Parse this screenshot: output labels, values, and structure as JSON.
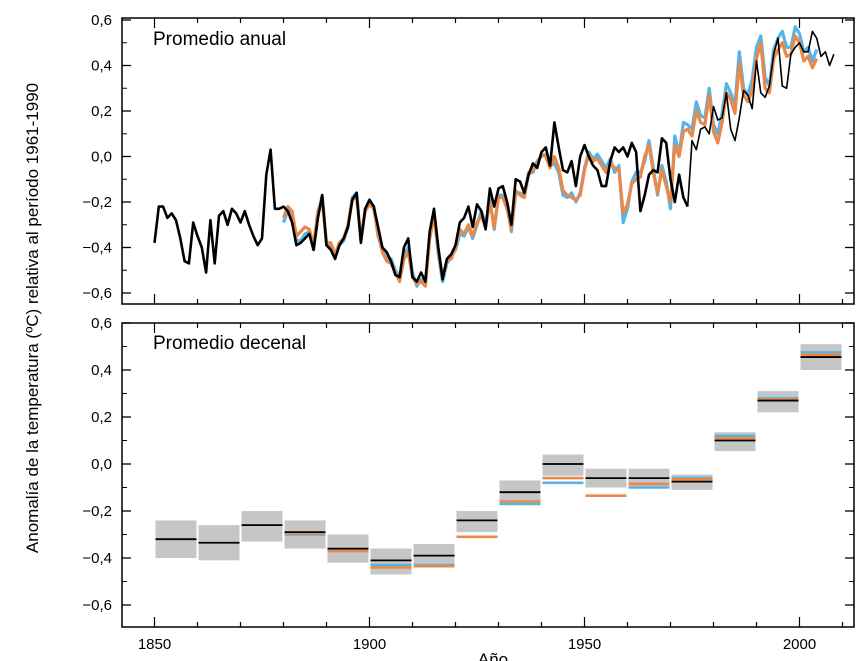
{
  "chart_data": {
    "ylabel": "Anomalía de la temperatura (ºC) relativa al período 1961-1990",
    "xlabel": "Año",
    "x_ticks": [
      "1850",
      "1900",
      "1950",
      "2000"
    ],
    "y_ticks": [
      "−0,6",
      "−0,4",
      "−0,2",
      "0,0",
      "0,2",
      "0,4",
      "0,6"
    ],
    "colors": {
      "black": "#000000",
      "blue": "#56b4e9",
      "orange": "#e8894a",
      "band": "#c6c6c6"
    },
    "panels": [
      {
        "type": "line",
        "title": "Promedio anual",
        "xlim": [
          1845,
          2012
        ],
        "ylim": [
          -0.65,
          0.62
        ],
        "series": [
          {
            "color": "black",
            "start_year": 1850,
            "values": [
              -0.38,
              -0.22,
              -0.22,
              -0.27,
              -0.25,
              -0.28,
              -0.36,
              -0.46,
              -0.47,
              -0.29,
              -0.35,
              -0.4,
              -0.51,
              -0.28,
              -0.47,
              -0.26,
              -0.24,
              -0.3,
              -0.23,
              -0.25,
              -0.29,
              -0.24,
              -0.3,
              -0.35,
              -0.39,
              -0.36,
              -0.08,
              0.03,
              -0.23,
              -0.23,
              -0.22,
              -0.24,
              -0.29,
              -0.39,
              -0.38,
              -0.36,
              -0.34,
              -0.41,
              -0.27,
              -0.17,
              -0.39,
              -0.41,
              -0.45,
              -0.39,
              -0.36,
              -0.31,
              -0.19,
              -0.16,
              -0.38,
              -0.23,
              -0.19,
              -0.22,
              -0.31,
              -0.4,
              -0.42,
              -0.46,
              -0.52,
              -0.53,
              -0.4,
              -0.36,
              -0.53,
              -0.55,
              -0.51,
              -0.55,
              -0.33,
              -0.23,
              -0.4,
              -0.54,
              -0.45,
              -0.43,
              -0.39,
              -0.29,
              -0.27,
              -0.22,
              -0.31,
              -0.21,
              -0.24,
              -0.32,
              -0.14,
              -0.22,
              -0.14,
              -0.13,
              -0.2,
              -0.3,
              -0.1,
              -0.11,
              -0.16,
              -0.08,
              -0.03,
              -0.05,
              0.02,
              0.04,
              -0.04,
              0.15,
              0.04,
              -0.06,
              -0.07,
              -0.02,
              -0.13,
              0.0,
              0.05,
              0.0,
              -0.04,
              -0.06,
              -0.13,
              -0.13,
              -0.02,
              0.04,
              0.02,
              0.04,
              0.0,
              0.06,
              0.02,
              -0.24,
              -0.17,
              -0.08,
              -0.06,
              -0.07,
              0.08,
              0.06,
              -0.1,
              -0.2,
              -0.08,
              -0.18,
              -0.22,
              0.07,
              0.03,
              0.12,
              0.13,
              0.1,
              0.22,
              0.16,
              0.17,
              0.28,
              0.12,
              0.07,
              0.17,
              0.29,
              0.27,
              0.21,
              0.42,
              0.28,
              0.26,
              0.31,
              0.45,
              0.52,
              0.31,
              0.3,
              0.45,
              0.48,
              0.5,
              0.46,
              0.46,
              0.55,
              0.52,
              0.44,
              0.46,
              0.4,
              0.45
            ],
            "thin_from_index": 124
          },
          {
            "color": "blue",
            "start_year": 1880,
            "values": [
              -0.29,
              -0.24,
              -0.25,
              -0.37,
              -0.37,
              -0.34,
              -0.33,
              -0.41,
              -0.26,
              -0.17,
              -0.39,
              -0.39,
              -0.44,
              -0.39,
              -0.37,
              -0.31,
              -0.18,
              -0.16,
              -0.37,
              -0.23,
              -0.2,
              -0.22,
              -0.35,
              -0.41,
              -0.45,
              -0.45,
              -0.5,
              -0.53,
              -0.43,
              -0.4,
              -0.51,
              -0.57,
              -0.54,
              -0.55,
              -0.35,
              -0.25,
              -0.43,
              -0.55,
              -0.47,
              -0.44,
              -0.41,
              -0.34,
              -0.35,
              -0.31,
              -0.36,
              -0.3,
              -0.24,
              -0.3,
              -0.19,
              -0.32,
              -0.17,
              -0.17,
              -0.21,
              -0.33,
              -0.16,
              -0.16,
              -0.17,
              -0.07,
              -0.07,
              -0.02,
              0.0,
              0.01,
              -0.04,
              -0.03,
              -0.07,
              -0.17,
              -0.18,
              -0.16,
              -0.2,
              -0.16,
              -0.05,
              0.02,
              -0.01,
              0.01,
              -0.02,
              -0.05,
              -0.01,
              -0.07,
              -0.04,
              -0.29,
              -0.23,
              -0.11,
              -0.07,
              -0.07,
              -0.02,
              0.07,
              -0.05,
              -0.17,
              -0.04,
              -0.11,
              -0.23,
              0.09,
              0.01,
              0.15,
              0.14,
              0.12,
              0.24,
              0.18,
              0.17,
              0.3,
              0.14,
              0.1,
              0.19,
              0.32,
              0.28,
              0.23,
              0.46,
              0.3,
              0.27,
              0.34,
              0.48,
              0.53,
              0.35,
              0.31,
              0.47,
              0.52,
              0.55,
              0.48,
              0.48,
              0.57,
              0.54,
              0.46,
              0.48,
              0.42,
              0.47
            ]
          },
          {
            "color": "orange",
            "start_year": 1880,
            "values": [
              -0.27,
              -0.22,
              -0.24,
              -0.35,
              -0.33,
              -0.31,
              -0.32,
              -0.39,
              -0.24,
              -0.19,
              -0.38,
              -0.38,
              -0.43,
              -0.38,
              -0.36,
              -0.3,
              -0.19,
              -0.18,
              -0.36,
              -0.24,
              -0.21,
              -0.23,
              -0.34,
              -0.42,
              -0.46,
              -0.47,
              -0.51,
              -0.55,
              -0.45,
              -0.42,
              -0.53,
              -0.56,
              -0.55,
              -0.57,
              -0.36,
              -0.26,
              -0.41,
              -0.53,
              -0.46,
              -0.45,
              -0.4,
              -0.32,
              -0.34,
              -0.3,
              -0.35,
              -0.29,
              -0.26,
              -0.31,
              -0.2,
              -0.31,
              -0.18,
              -0.18,
              -0.23,
              -0.32,
              -0.15,
              -0.17,
              -0.18,
              -0.08,
              -0.06,
              -0.03,
              0.01,
              0.0,
              -0.05,
              0.0,
              -0.05,
              -0.15,
              -0.17,
              -0.18,
              -0.19,
              -0.17,
              -0.06,
              0.01,
              -0.02,
              -0.01,
              -0.04,
              -0.07,
              -0.03,
              -0.05,
              -0.06,
              -0.25,
              -0.21,
              -0.12,
              -0.1,
              -0.09,
              0.0,
              0.05,
              -0.07,
              -0.16,
              -0.06,
              -0.13,
              -0.2,
              0.05,
              0.0,
              0.11,
              0.12,
              0.09,
              0.2,
              0.15,
              0.14,
              0.27,
              0.11,
              0.06,
              0.15,
              0.28,
              0.25,
              0.19,
              0.41,
              0.27,
              0.24,
              0.29,
              0.43,
              0.5,
              0.3,
              0.28,
              0.43,
              0.47,
              0.5,
              0.44,
              0.45,
              0.53,
              0.5,
              0.42,
              0.44,
              0.39,
              0.43
            ]
          }
        ]
      },
      {
        "type": "bar",
        "title": "Promedio decenal",
        "xlim": [
          1845,
          2012
        ],
        "ylim": [
          -0.65,
          0.62
        ],
        "decades": [
          {
            "x0": 1850,
            "x1": 1860,
            "black": -0.32,
            "lo": -0.4,
            "hi": -0.24
          },
          {
            "x0": 1860,
            "x1": 1870,
            "black": -0.335,
            "lo": -0.41,
            "hi": -0.26
          },
          {
            "x0": 1870,
            "x1": 1880,
            "black": -0.26,
            "lo": -0.33,
            "hi": -0.2
          },
          {
            "x0": 1880,
            "x1": 1890,
            "black": -0.29,
            "blue": -0.3,
            "orange": -0.295,
            "lo": -0.36,
            "hi": -0.24
          },
          {
            "x0": 1890,
            "x1": 1900,
            "black": -0.36,
            "blue": -0.37,
            "orange": -0.37,
            "lo": -0.42,
            "hi": -0.3
          },
          {
            "x0": 1900,
            "x1": 1910,
            "black": -0.41,
            "blue": -0.43,
            "orange": -0.44,
            "lo": -0.47,
            "hi": -0.36
          },
          {
            "x0": 1910,
            "x1": 1920,
            "black": -0.39,
            "blue": -0.43,
            "orange": -0.435,
            "lo": -0.44,
            "hi": -0.34
          },
          {
            "x0": 1920,
            "x1": 1930,
            "black": -0.24,
            "orange": -0.31,
            "lo": -0.29,
            "hi": -0.2
          },
          {
            "x0": 1930,
            "x1": 1940,
            "black": -0.12,
            "blue": -0.17,
            "orange": -0.16,
            "lo": -0.17,
            "hi": -0.07
          },
          {
            "x0": 1940,
            "x1": 1950,
            "black": 0.0,
            "blue": -0.08,
            "orange": -0.06,
            "lo": -0.05,
            "hi": 0.04
          },
          {
            "x0": 1950,
            "x1": 1960,
            "black": -0.06,
            "orange": -0.135,
            "lo": -0.1,
            "hi": -0.02
          },
          {
            "x0": 1960,
            "x1": 1970,
            "black": -0.06,
            "blue": -0.1,
            "orange": -0.085,
            "lo": -0.1,
            "hi": -0.02
          },
          {
            "x0": 1970,
            "x1": 1980,
            "black": -0.075,
            "blue": -0.06,
            "orange": -0.065,
            "lo": -0.11,
            "hi": -0.045
          },
          {
            "x0": 1980,
            "x1": 1990,
            "black": 0.1,
            "blue": 0.12,
            "orange": 0.11,
            "lo": 0.055,
            "hi": 0.135
          },
          {
            "x0": 1990,
            "x1": 2000,
            "black": 0.27,
            "blue": 0.28,
            "orange": 0.275,
            "lo": 0.22,
            "hi": 0.31
          },
          {
            "x0": 2000,
            "x1": 2010,
            "black": 0.455,
            "blue": 0.475,
            "orange": 0.465,
            "lo": 0.4,
            "hi": 0.51
          }
        ]
      }
    ]
  }
}
